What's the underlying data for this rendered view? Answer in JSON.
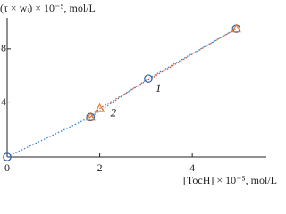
{
  "chart_data": {
    "type": "scatter",
    "y_label": "(τ × wᵢ) × 10⁻⁵, mol/L",
    "x_label": "[TocH] × 10⁻⁵, mol/L",
    "xlim": [
      0,
      5.6
    ],
    "ylim": [
      0,
      10.3
    ],
    "xticks": [
      0,
      2,
      4
    ],
    "yticks": [
      4,
      8
    ],
    "line_style": "dotted",
    "series": [
      {
        "name": "1",
        "color": "#2e5aa8",
        "line_color": "#3a86d8",
        "marker": "circle",
        "x": [
          0,
          1.8,
          3.05,
          4.95
        ],
        "values": [
          0,
          2.95,
          5.8,
          9.5
        ]
      },
      {
        "name": "2",
        "color": "#e07b2c",
        "line_color": "#d9532a",
        "marker": "triangle",
        "x": [
          1.8,
          2.0,
          4.95
        ],
        "values": [
          2.95,
          3.6,
          9.5
        ]
      }
    ]
  }
}
